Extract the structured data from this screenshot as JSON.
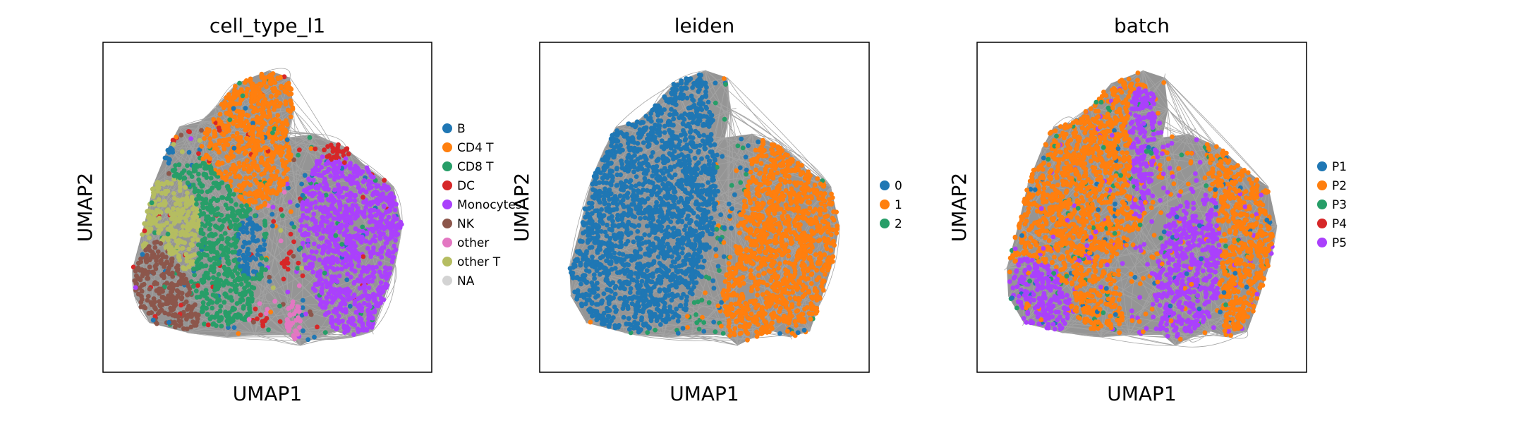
{
  "chart_data": [
    {
      "type": "scatter",
      "title": "cell_type_l1",
      "xlabel": "UMAP1",
      "ylabel": "UMAP2",
      "grid": false,
      "axis_ticks": false,
      "legend_position": "right",
      "overlay": "gray edge lines (neighbor graph)",
      "series": [
        {
          "name": "B",
          "color": "#1f77b4"
        },
        {
          "name": "CD4 T",
          "color": "#ff7f0e"
        },
        {
          "name": "CD8 T",
          "color": "#279e68"
        },
        {
          "name": "DC",
          "color": "#d62728"
        },
        {
          "name": "Monocytes",
          "color": "#aa40fc"
        },
        {
          "name": "NK",
          "color": "#8c564b"
        },
        {
          "name": "other",
          "color": "#e377c2"
        },
        {
          "name": "other T",
          "color": "#b5bd61"
        },
        {
          "name": "NA",
          "color": "#d3d3d3"
        }
      ]
    },
    {
      "type": "scatter",
      "title": "leiden",
      "xlabel": "UMAP1",
      "ylabel": "UMAP2",
      "grid": false,
      "axis_ticks": false,
      "legend_position": "right",
      "overlay": "gray edge lines (neighbor graph)",
      "series": [
        {
          "name": "0",
          "color": "#1f77b4"
        },
        {
          "name": "1",
          "color": "#ff7f0e"
        },
        {
          "name": "2",
          "color": "#279e68"
        }
      ]
    },
    {
      "type": "scatter",
      "title": "batch",
      "xlabel": "UMAP1",
      "ylabel": "UMAP2",
      "grid": false,
      "axis_ticks": false,
      "legend_position": "right",
      "overlay": "gray edge lines (neighbor graph)",
      "series": [
        {
          "name": "P1",
          "color": "#1f77b4"
        },
        {
          "name": "P2",
          "color": "#ff7f0e"
        },
        {
          "name": "P3",
          "color": "#279e68"
        },
        {
          "name": "P4",
          "color": "#d62728"
        },
        {
          "name": "P5",
          "color": "#aa40fc"
        }
      ]
    }
  ]
}
